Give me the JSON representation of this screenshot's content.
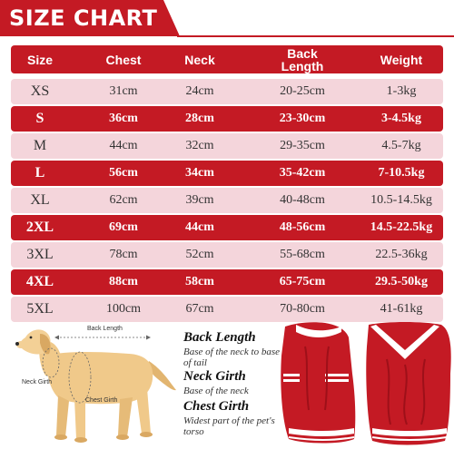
{
  "title": "SIZE CHART",
  "columns": [
    "Size",
    "Chest",
    "Neck",
    "Back Length",
    "Weight"
  ],
  "rows": [
    {
      "size": "XS",
      "chest": "31cm",
      "neck": "24cm",
      "back": "20-25cm",
      "weight": "1-3kg",
      "style": "light"
    },
    {
      "size": "S",
      "chest": "36cm",
      "neck": "28cm",
      "back": "23-30cm",
      "weight": "3-4.5kg",
      "style": "dark"
    },
    {
      "size": "M",
      "chest": "44cm",
      "neck": "32cm",
      "back": "29-35cm",
      "weight": "4.5-7kg",
      "style": "light"
    },
    {
      "size": "L",
      "chest": "56cm",
      "neck": "34cm",
      "back": "35-42cm",
      "weight": "7-10.5kg",
      "style": "dark"
    },
    {
      "size": "XL",
      "chest": "62cm",
      "neck": "39cm",
      "back": "40-48cm",
      "weight": "10.5-14.5kg",
      "style": "light"
    },
    {
      "size": "2XL",
      "chest": "69cm",
      "neck": "44cm",
      "back": "48-56cm",
      "weight": "14.5-22.5kg",
      "style": "dark"
    },
    {
      "size": "3XL",
      "chest": "78cm",
      "neck": "52cm",
      "back": "55-68cm",
      "weight": "22.5-36kg",
      "style": "light"
    },
    {
      "size": "4XL",
      "chest": "88cm",
      "neck": "58cm",
      "back": "65-75cm",
      "weight": "29.5-50kg",
      "style": "dark"
    },
    {
      "size": "5XL",
      "chest": "100cm",
      "neck": "67cm",
      "back": "70-80cm",
      "weight": "41-61kg",
      "style": "light"
    }
  ],
  "dog_labels": {
    "back_length": "Back Length",
    "neck_girth": "Neck Girth",
    "chest_girth": "Chest Girth"
  },
  "descriptions": {
    "back_length_title": "Back Length",
    "back_length_text": "Base of the neck to base of tail",
    "neck_girth_title": "Neck Girth",
    "neck_girth_text": "Base of the neck",
    "chest_girth_title": "Chest Girth",
    "chest_girth_text": "Widest part of the pet's torso"
  },
  "colors": {
    "brand_red": "#c41a24",
    "light_pink": "#f4d5db"
  },
  "icons": [
    "golden-retriever-illustration",
    "red-cable-knit-sweater-front",
    "red-cable-knit-sweater-back"
  ]
}
